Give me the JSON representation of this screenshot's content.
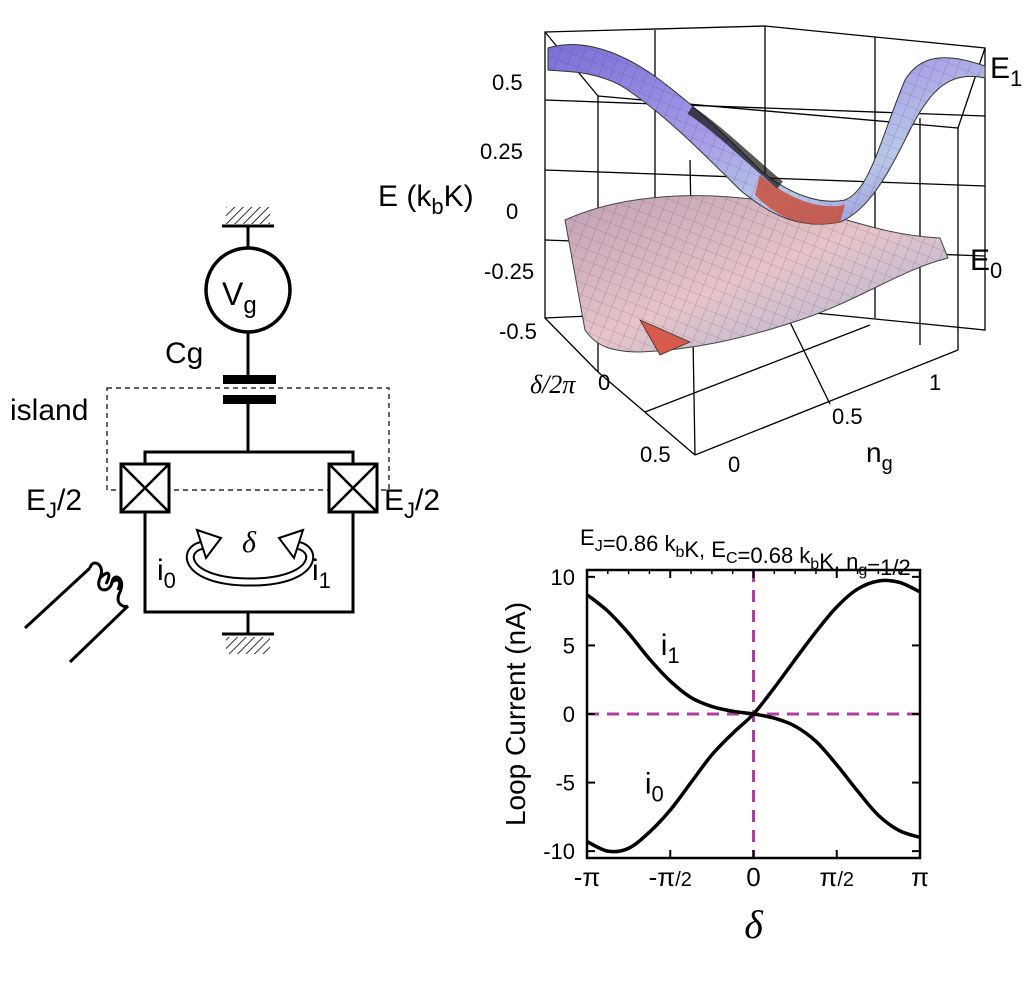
{
  "circuit": {
    "source_main": "V",
    "source_sub": "g",
    "capacitor": "Cg",
    "island": "island",
    "junction_left": {
      "main": "E",
      "sub": "J",
      "tail": "/2"
    },
    "junction_right": {
      "main": "E",
      "sub": "J",
      "tail": "/2"
    },
    "phase": "δ",
    "current_left": {
      "main": "i",
      "sub": "0"
    },
    "current_right": {
      "main": "i",
      "sub": "1"
    }
  },
  "surface": {
    "ylabel": {
      "main": "E  (k",
      "sub": "b",
      "tail": "K)"
    },
    "ticks_e": [
      "0.5",
      "0.25",
      "0",
      "-0.25",
      "-0.5"
    ],
    "ticks_delta": [
      "0",
      "0.5"
    ],
    "delta_label": "δ/2π",
    "ticks_ng": [
      "0",
      "0.5",
      "1"
    ],
    "ng_label": {
      "main": "n",
      "sub": "g"
    },
    "band_upper": {
      "main": "E",
      "sub": "1"
    },
    "band_lower": {
      "main": "E",
      "sub": "0"
    }
  },
  "chart_data": {
    "type": "line",
    "title_parts": [
      {
        "main": "E",
        "sub": "J"
      },
      {
        "main": "=0.86 k",
        "sub": "b"
      },
      {
        "main": "K, E",
        "sub": "C"
      },
      {
        "main": "=0.68 k",
        "sub": "b"
      },
      {
        "main": "K, n",
        "sub": "g"
      },
      {
        "main": "=1/2",
        "sub": ""
      }
    ],
    "ylabel": "Loop Current (nA)",
    "xlabel": "δ",
    "xlim": [
      -3.1416,
      3.1416
    ],
    "ylim": [
      -10.5,
      10.5
    ],
    "yticks": [
      {
        "v": 10,
        "label": "10"
      },
      {
        "v": 5,
        "label": "5"
      },
      {
        "v": 0,
        "label": "0"
      },
      {
        "v": -5,
        "label": "-5"
      },
      {
        "v": -10,
        "label": "-10"
      }
    ],
    "xticks": [
      {
        "v": -3.1416,
        "main": "-π",
        "tail": ""
      },
      {
        "v": -1.5708,
        "main": "-π",
        "tail": "/2"
      },
      {
        "v": 0,
        "main": "0",
        "tail": ""
      },
      {
        "v": 1.5708,
        "main": "π",
        "tail": "/2"
      },
      {
        "v": 3.1416,
        "main": "π",
        "tail": ""
      }
    ],
    "series": [
      {
        "name": "i1",
        "label": {
          "main": "i",
          "sub": "1"
        },
        "x": [
          -3.1416,
          -2.75,
          -2.36,
          -1.96,
          -1.57,
          -1.18,
          -0.79,
          -0.39,
          0,
          0.39,
          0.79,
          1.18,
          1.57,
          1.96,
          2.36,
          2.75,
          3.1416
        ],
        "y": [
          8.7,
          7.5,
          5.9,
          4.0,
          2.4,
          1.2,
          0.55,
          0.2,
          0,
          -0.3,
          -0.9,
          -2.0,
          -3.7,
          -5.6,
          -7.4,
          -8.5,
          -9.0
        ]
      },
      {
        "name": "i0",
        "label": {
          "main": "i",
          "sub": "0"
        },
        "x": [
          -3.1416,
          -2.75,
          -2.36,
          -1.96,
          -1.57,
          -1.18,
          -0.79,
          -0.39,
          0,
          0.39,
          0.79,
          1.18,
          1.57,
          1.96,
          2.36,
          2.75,
          3.1416
        ],
        "y": [
          -9.3,
          -10.0,
          -9.8,
          -8.6,
          -7.0,
          -5.0,
          -3.0,
          -1.4,
          0,
          1.9,
          4.0,
          6.0,
          7.8,
          9.1,
          9.7,
          9.6,
          8.9
        ]
      }
    ],
    "reference_lines": {
      "x": 0,
      "y": 0,
      "color": "#B040A0"
    },
    "line_color": "#000000"
  }
}
